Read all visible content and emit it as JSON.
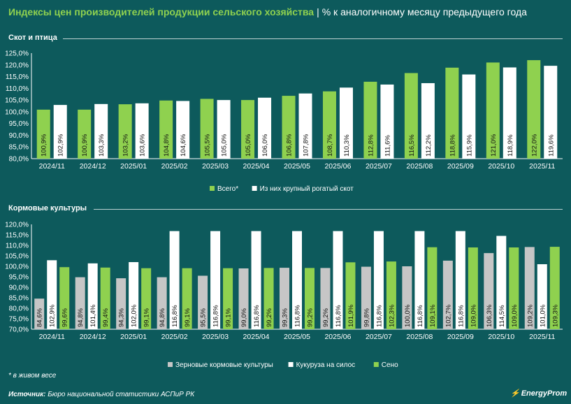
{
  "header": {
    "title_main": "Индексы цен производителей продукции сельского хозяйства",
    "separator": "|",
    "title_sub": "% к аналогичному месяцу предыдущего года"
  },
  "colors": {
    "background": "#0d5a5c",
    "green": "#8fd14f",
    "white": "#ffffff",
    "gray": "#c6c6c6"
  },
  "chart_data": [
    {
      "type": "bar",
      "title": "Скот и птица",
      "categories": [
        "2024/11",
        "2024/12",
        "2025/01",
        "2025/02",
        "2025/03",
        "2025/04",
        "2025/05",
        "2025/06",
        "2025/07",
        "2025/08",
        "2025/09",
        "2025/10",
        "2025/11"
      ],
      "ylim": [
        80,
        125
      ],
      "yticks": [
        80,
        85,
        90,
        95,
        100,
        105,
        110,
        115,
        120,
        125
      ],
      "ytick_labels": [
        "80,0%",
        "85,0%",
        "90,0%",
        "95,0%",
        "100,0%",
        "105,0%",
        "110,0%",
        "115,0%",
        "120,0%",
        "125,0%"
      ],
      "series": [
        {
          "name": "Всего*",
          "color": "#8fd14f",
          "values": [
            100.9,
            100.9,
            103.2,
            104.8,
            105.5,
            105.0,
            106.8,
            108.7,
            112.8,
            116.5,
            118.8,
            121.0,
            122.0
          ],
          "labels": [
            "100,9%",
            "100,9%",
            "103,2%",
            "104,8%",
            "105,5%",
            "105,0%",
            "106,8%",
            "108,7%",
            "112,8%",
            "116,5%",
            "118,8%",
            "121,0%",
            "122,0%"
          ]
        },
        {
          "name": "Из них крупный рогатый скот",
          "color": "#ffffff",
          "values": [
            102.9,
            103.3,
            103.6,
            104.6,
            105.0,
            106.0,
            107.8,
            110.3,
            111.6,
            112.2,
            115.9,
            118.9,
            119.6
          ],
          "labels": [
            "102,9%",
            "103,3%",
            "103,6%",
            "104,6%",
            "105,0%",
            "106,0%",
            "107,8%",
            "110,3%",
            "111,6%",
            "112,2%",
            "115,9%",
            "118,9%",
            "119,6%"
          ]
        }
      ]
    },
    {
      "type": "bar",
      "title": "Кормовые культуры",
      "categories": [
        "2024/11",
        "2024/12",
        "2025/01",
        "2025/02",
        "2025/03",
        "2025/04",
        "2025/05",
        "2025/06",
        "2025/07",
        "2025/08",
        "2025/09",
        "2025/10",
        "2025/11"
      ],
      "ylim": [
        70,
        120
      ],
      "yticks": [
        70,
        75,
        80,
        85,
        90,
        95,
        100,
        105,
        110,
        115,
        120
      ],
      "ytick_labels": [
        "70,0%",
        "75,0%",
        "80,0%",
        "85,0%",
        "90,0%",
        "95,0%",
        "100,0%",
        "105,0%",
        "110,0%",
        "115,0%",
        "120,0%"
      ],
      "series": [
        {
          "name": "Зерновые кормовые культуры",
          "color": "#c6c6c6",
          "values": [
            84.6,
            94.8,
            94.3,
            94.8,
            95.5,
            99.0,
            99.3,
            99.2,
            99.8,
            100.0,
            102.7,
            106.3,
            109.2
          ],
          "labels": [
            "84,6%",
            "94,8%",
            "94,3%",
            "94,8%",
            "95,5%",
            "99,0%",
            "99,3%",
            "99,2%",
            "99,8%",
            "100,0%",
            "102,7%",
            "106,3%",
            "109,2%"
          ]
        },
        {
          "name": "Кукуруза на силос",
          "color": "#ffffff",
          "values": [
            102.9,
            101.4,
            102.0,
            116.8,
            116.8,
            116.8,
            116.8,
            116.8,
            116.8,
            116.8,
            116.8,
            114.5,
            101.0
          ],
          "labels": [
            "102,9%",
            "101,4%",
            "102,0%",
            "116,8%",
            "116,8%",
            "116,8%",
            "116,8%",
            "116,8%",
            "116,8%",
            "116,8%",
            "116,8%",
            "114,5%",
            "101,0%"
          ]
        },
        {
          "name": "Сено",
          "color": "#8fd14f",
          "values": [
            99.6,
            99.4,
            99.1,
            99.1,
            99.1,
            99.2,
            99.2,
            101.9,
            102.3,
            109.1,
            109.0,
            109.0,
            109.3
          ],
          "labels": [
            "99,6%",
            "99,4%",
            "99,1%",
            "99,1%",
            "99,1%",
            "99,2%",
            "99,2%",
            "101,9%",
            "102,3%",
            "109,1%",
            "109,0%",
            "109,0%",
            "109,3%"
          ]
        }
      ]
    }
  ],
  "footnote": "* в живом весе",
  "source": {
    "label": "Источник:",
    "text": "Бюро национальной статистики АСПиР РК"
  },
  "logo": {
    "mark": "⚡",
    "text": "EnergyProm"
  }
}
